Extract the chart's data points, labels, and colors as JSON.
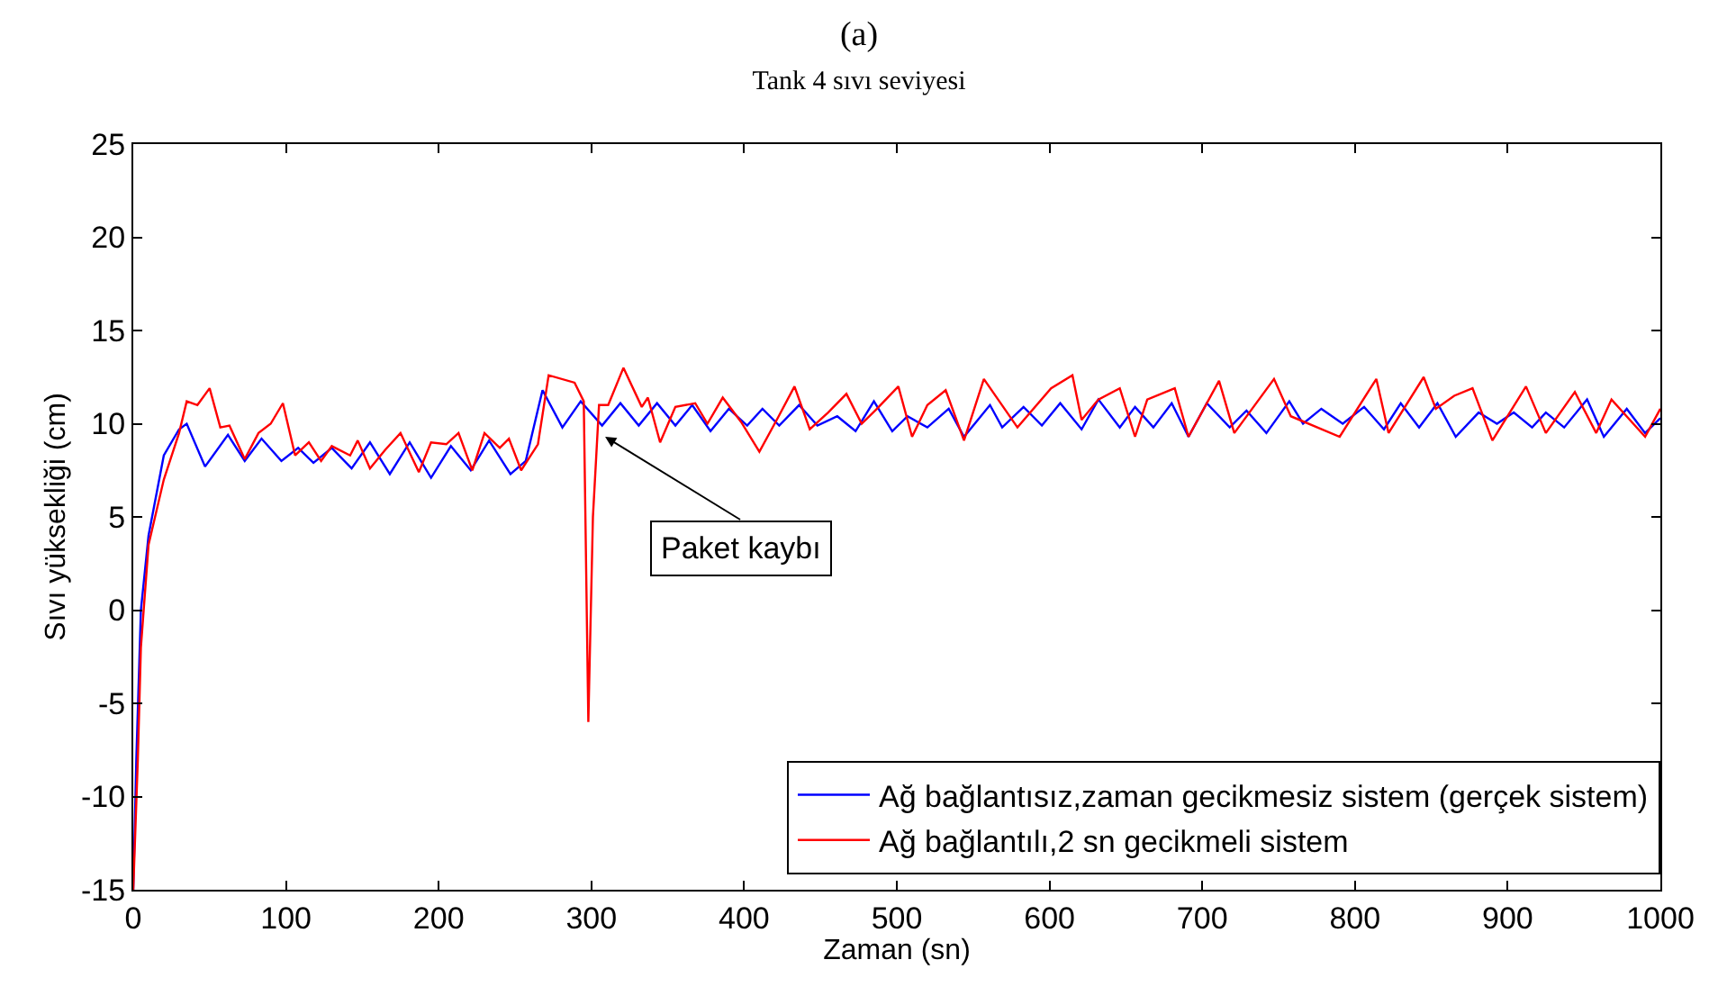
{
  "chart_data": {
    "type": "line",
    "title": "(a)",
    "subtitle": "Tank 4 sıvı seviyesi",
    "xlabel": "Zaman (sn)",
    "ylabel": "Sıvı yüksekliği (cm)",
    "xlim": [
      0,
      1000
    ],
    "xticks": [
      0,
      100,
      200,
      300,
      400,
      500,
      600,
      700,
      800,
      900,
      1000
    ],
    "ylim": [
      -15,
      25
    ],
    "yticks": [
      -15,
      -10,
      -5,
      0,
      5,
      10,
      15,
      20,
      25
    ],
    "legend": "bottom right",
    "marker": "none",
    "line_style": "solid",
    "annotations": [
      {
        "text": "Paket kaybı",
        "x": 309,
        "y": 9.3
      }
    ],
    "series": [
      {
        "name": "Ağ bağlantısız,zaman gecikmesiz sistem (gerçek sistem)",
        "color": "#0000ff",
        "x": [
          0,
          2,
          5,
          10,
          20,
          30,
          35,
          47,
          62,
          73,
          84,
          97,
          108,
          118,
          130,
          143,
          155,
          168,
          181,
          195,
          208,
          221,
          233,
          247,
          257,
          268,
          281,
          293,
          307,
          319,
          331,
          343,
          355,
          366,
          378,
          390,
          402,
          412,
          423,
          436,
          448,
          461,
          473,
          485,
          497,
          507,
          520,
          534,
          544,
          561,
          569,
          583,
          595,
          607,
          621,
          632,
          646,
          656,
          668,
          680,
          691,
          703,
          718,
          729,
          742,
          757,
          766,
          778,
          792,
          806,
          819,
          830,
          842,
          854,
          866,
          881,
          893,
          904,
          916,
          925,
          937,
          952,
          963,
          978,
          990,
          1000
        ],
        "values": [
          -15,
          -8,
          0,
          4,
          8.3,
          9.7,
          10,
          7.7,
          9.4,
          8,
          9.2,
          8,
          8.7,
          7.9,
          8.7,
          7.6,
          9,
          7.3,
          9,
          7.1,
          8.8,
          7.5,
          9.1,
          7.3,
          8,
          11.8,
          9.8,
          11.2,
          9.9,
          11.1,
          9.9,
          11.1,
          9.9,
          11,
          9.6,
          10.8,
          9.9,
          10.8,
          9.9,
          11,
          9.9,
          10.4,
          9.6,
          11.2,
          9.6,
          10.4,
          9.8,
          10.8,
          9.3,
          11,
          9.8,
          10.9,
          9.9,
          11.1,
          9.7,
          11.3,
          9.8,
          10.9,
          9.8,
          11.1,
          9.3,
          11.1,
          9.8,
          10.7,
          9.5,
          11.2,
          10,
          10.8,
          10,
          10.9,
          9.7,
          11.1,
          9.8,
          11.1,
          9.3,
          10.6,
          10,
          10.6,
          9.8,
          10.6,
          9.8,
          11.3,
          9.3,
          10.8,
          9.5,
          10.3
        ]
      },
      {
        "name": "Ağ bağlantılı,2 sn gecikmeli sistem",
        "color": "#ff0000",
        "x": [
          0,
          3,
          5,
          10,
          20,
          30,
          35,
          42,
          50,
          57,
          63,
          73,
          82,
          90,
          98,
          106,
          115,
          123,
          130,
          142,
          147,
          155,
          165,
          175,
          187,
          195,
          205,
          213,
          222,
          230,
          240,
          246,
          254,
          265,
          272,
          289,
          295,
          298,
          301,
          305,
          311,
          321,
          333,
          337,
          345,
          355,
          368,
          376,
          386,
          398,
          410,
          422,
          433,
          443,
          455,
          467,
          477,
          487,
          501,
          510,
          520,
          532,
          544,
          557,
          579,
          601,
          615,
          621,
          632,
          646,
          656,
          664,
          682,
          691,
          711,
          721,
          747,
          758,
          790,
          814,
          822,
          845,
          853,
          865,
          877,
          890,
          912,
          925,
          944,
          958,
          968,
          990,
          1000
        ],
        "values": [
          -15,
          -8,
          -2,
          3.5,
          7,
          9.5,
          11.2,
          11,
          11.9,
          9.8,
          9.9,
          8.1,
          9.5,
          10,
          11.1,
          8.3,
          9,
          8,
          8.8,
          8.3,
          9.1,
          7.6,
          8.6,
          9.5,
          7.4,
          9,
          8.9,
          9.5,
          7.5,
          9.5,
          8.7,
          9.2,
          7.5,
          8.9,
          12.6,
          12.2,
          11.2,
          -6,
          5,
          11,
          11,
          13,
          10.9,
          11.4,
          9,
          10.9,
          11.1,
          10,
          11.4,
          10.1,
          8.5,
          10.3,
          12,
          9.7,
          10.6,
          11.6,
          10,
          10.8,
          12,
          9.3,
          11,
          11.8,
          9.1,
          12.4,
          9.8,
          11.9,
          12.6,
          10.2,
          11.3,
          11.9,
          9.3,
          11.3,
          11.9,
          9.3,
          12.3,
          9.5,
          12.4,
          10.4,
          9.3,
          12.4,
          9.5,
          12.5,
          10.8,
          11.5,
          11.9,
          9.1,
          12,
          9.5,
          11.7,
          9.5,
          11.3,
          9.3,
          10.8
        ]
      }
    ]
  }
}
